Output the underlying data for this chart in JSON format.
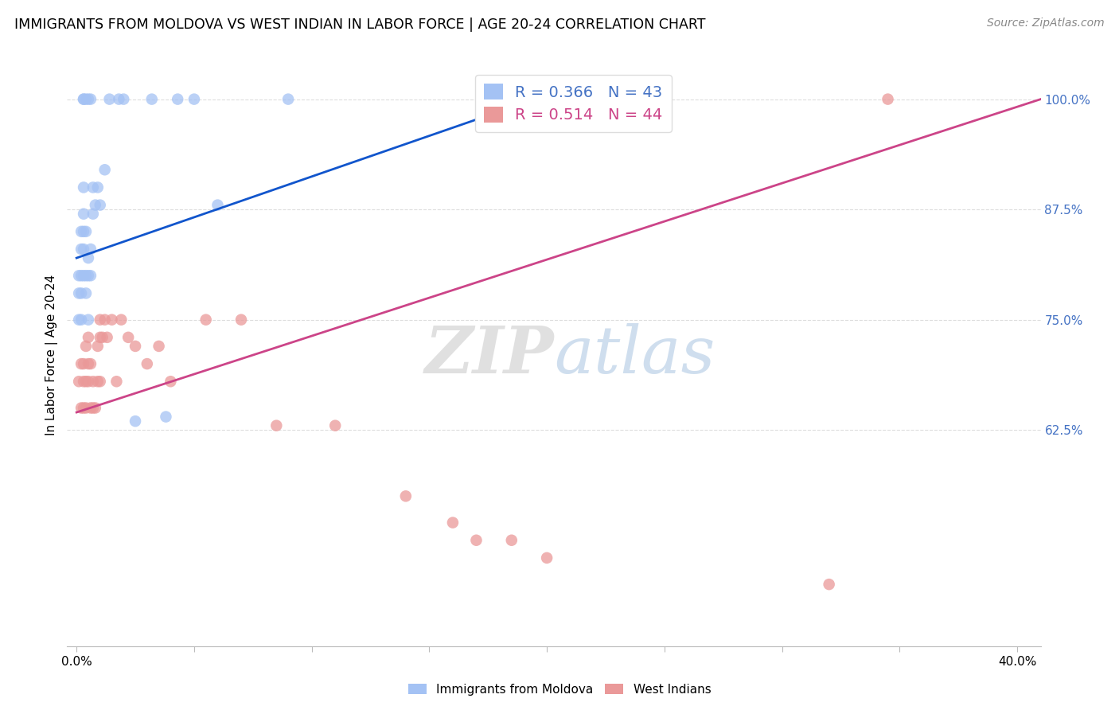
{
  "title": "IMMIGRANTS FROM MOLDOVA VS WEST INDIAN IN LABOR FORCE | AGE 20-24 CORRELATION CHART",
  "source": "Source: ZipAtlas.com",
  "ylabel": "In Labor Force | Age 20-24",
  "xlim": [
    -0.004,
    0.41
  ],
  "ylim": [
    0.38,
    1.04
  ],
  "blue_R": 0.366,
  "blue_N": 43,
  "pink_R": 0.514,
  "pink_N": 44,
  "blue_color": "#a4c2f4",
  "pink_color": "#ea9999",
  "blue_line_color": "#1155cc",
  "pink_line_color": "#cc4488",
  "legend_label_blue": "Immigrants from Moldova",
  "legend_label_pink": "West Indians",
  "blue_scatter_x": [
    0.001,
    0.001,
    0.001,
    0.002,
    0.002,
    0.002,
    0.002,
    0.002,
    0.003,
    0.003,
    0.003,
    0.003,
    0.003,
    0.003,
    0.003,
    0.004,
    0.004,
    0.004,
    0.004,
    0.005,
    0.005,
    0.005,
    0.005,
    0.006,
    0.006,
    0.006,
    0.007,
    0.007,
    0.008,
    0.009,
    0.01,
    0.012,
    0.014,
    0.018,
    0.02,
    0.025,
    0.032,
    0.038,
    0.043,
    0.05,
    0.06,
    0.09,
    0.18
  ],
  "blue_scatter_y": [
    0.75,
    0.78,
    0.8,
    0.75,
    0.78,
    0.8,
    0.83,
    0.85,
    0.8,
    0.83,
    0.85,
    0.87,
    0.9,
    1.0,
    1.0,
    0.78,
    0.8,
    0.85,
    1.0,
    0.75,
    0.8,
    0.82,
    1.0,
    0.8,
    0.83,
    1.0,
    0.87,
    0.9,
    0.88,
    0.9,
    0.88,
    0.92,
    1.0,
    1.0,
    1.0,
    0.635,
    1.0,
    0.64,
    1.0,
    1.0,
    0.88,
    1.0,
    1.0
  ],
  "pink_scatter_x": [
    0.001,
    0.002,
    0.002,
    0.003,
    0.003,
    0.003,
    0.004,
    0.004,
    0.004,
    0.005,
    0.005,
    0.005,
    0.006,
    0.006,
    0.007,
    0.007,
    0.008,
    0.009,
    0.009,
    0.01,
    0.01,
    0.01,
    0.011,
    0.012,
    0.013,
    0.015,
    0.017,
    0.019,
    0.022,
    0.025,
    0.03,
    0.035,
    0.04,
    0.055,
    0.07,
    0.085,
    0.11,
    0.14,
    0.16,
    0.17,
    0.185,
    0.2,
    0.32,
    0.345
  ],
  "pink_scatter_y": [
    0.68,
    0.65,
    0.7,
    0.65,
    0.68,
    0.7,
    0.65,
    0.68,
    0.72,
    0.68,
    0.7,
    0.73,
    0.65,
    0.7,
    0.65,
    0.68,
    0.65,
    0.68,
    0.72,
    0.68,
    0.73,
    0.75,
    0.73,
    0.75,
    0.73,
    0.75,
    0.68,
    0.75,
    0.73,
    0.72,
    0.7,
    0.72,
    0.68,
    0.75,
    0.75,
    0.63,
    0.63,
    0.55,
    0.52,
    0.5,
    0.5,
    0.48,
    0.45,
    1.0
  ],
  "blue_trendline_x": [
    0.0,
    0.195
  ],
  "blue_trendline_y": [
    0.82,
    1.0
  ],
  "pink_trendline_x": [
    0.0,
    0.41
  ],
  "pink_trendline_y": [
    0.645,
    1.0
  ],
  "x_tick_positions": [
    0.0,
    0.05,
    0.1,
    0.15,
    0.2,
    0.25,
    0.3,
    0.35,
    0.4
  ],
  "x_tick_labels": [
    "0.0%",
    "",
    "",
    "",
    "",
    "",
    "",
    "",
    "40.0%"
  ],
  "y_tick_positions": [
    0.625,
    0.75,
    0.875,
    1.0
  ],
  "y_tick_labels": [
    "62.5%",
    "75.0%",
    "87.5%",
    "100.0%"
  ],
  "right_label_color": "#4472c4",
  "grid_color": "#dddddd",
  "title_fontsize": 12.5,
  "source_fontsize": 10,
  "axis_fontsize": 11,
  "legend_fontsize": 14,
  "marker_size": 110,
  "marker_alpha": 0.75,
  "line_width": 2.0
}
